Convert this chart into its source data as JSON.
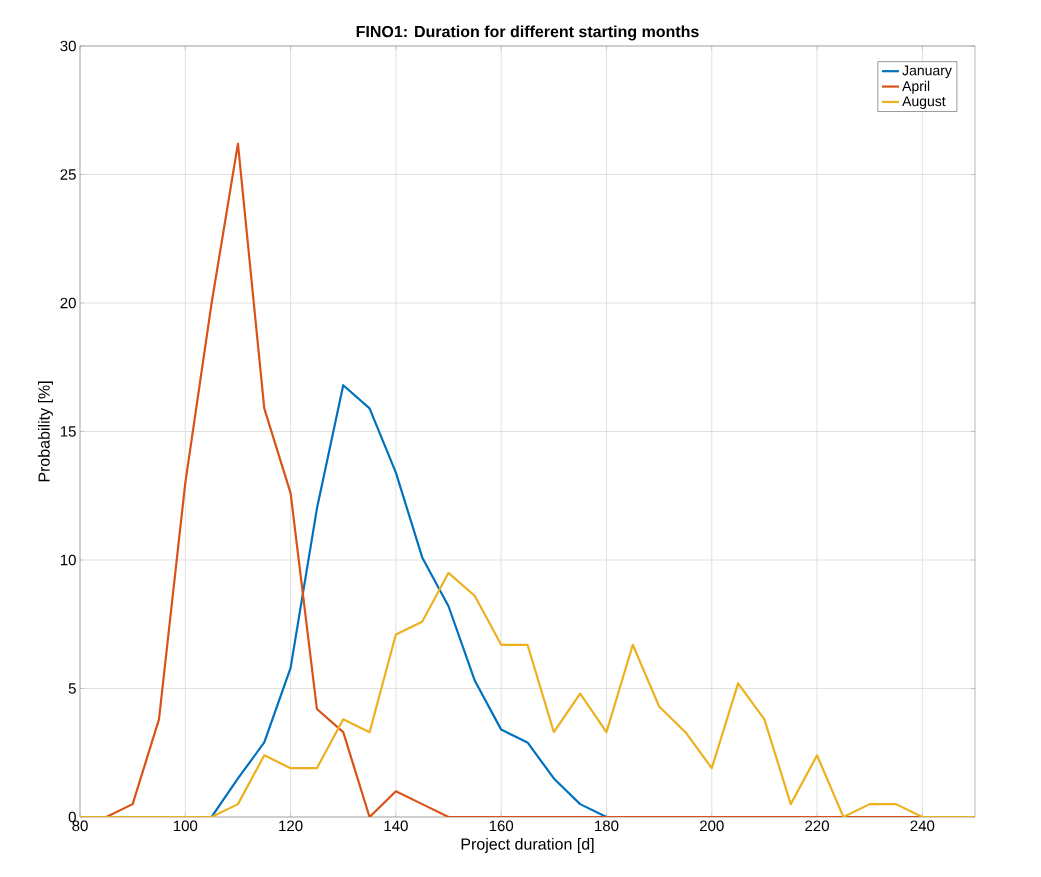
{
  "chart_data": {
    "type": "line",
    "title": "FINO1: Duration for different starting months",
    "xlabel": "Project duration [d]",
    "ylabel": "Probability [%]",
    "x": [
      80,
      85,
      90,
      95,
      100,
      105,
      110,
      115,
      120,
      125,
      130,
      135,
      140,
      145,
      150,
      155,
      160,
      165,
      170,
      175,
      180,
      185,
      190,
      195,
      200,
      205,
      210,
      215,
      220,
      225,
      230,
      235,
      240,
      245,
      250
    ],
    "series": [
      {
        "name": "January",
        "color": "#0072bd",
        "values": [
          null,
          null,
          null,
          null,
          null,
          0,
          1.5,
          2.9,
          5.8,
          12,
          16.8,
          15.9,
          13.4,
          10.1,
          8.2,
          5.3,
          3.4,
          2.9,
          1.5,
          0.5,
          0,
          null,
          null,
          null,
          null,
          null,
          null,
          null,
          null,
          null,
          null,
          null,
          null,
          null,
          null
        ]
      },
      {
        "name": "April",
        "color": "#d95319",
        "values": [
          0,
          0,
          0.5,
          3.8,
          13,
          20,
          26.2,
          15.9,
          12.6,
          4.2,
          3.3,
          0,
          1,
          0.5,
          0,
          0,
          0,
          0,
          0,
          0,
          0,
          0,
          0,
          0,
          0,
          0,
          0,
          0,
          0,
          0,
          0,
          0,
          0,
          0,
          0
        ]
      },
      {
        "name": "August",
        "color": "#edb120",
        "values": [
          0,
          0,
          0,
          0,
          0,
          0,
          0.5,
          2.4,
          1.9,
          1.9,
          3.8,
          3.3,
          7.1,
          7.6,
          9.5,
          8.6,
          6.7,
          6.7,
          3.3,
          4.8,
          3.3,
          6.7,
          4.3,
          3.3,
          1.9,
          5.2,
          3.8,
          0.5,
          2.4,
          0,
          0.5,
          0.5,
          0,
          0,
          0
        ]
      }
    ],
    "xlim": [
      80,
      250
    ],
    "ylim": [
      0,
      30
    ],
    "xticks": [
      80,
      100,
      120,
      140,
      160,
      180,
      200,
      220,
      240
    ],
    "yticks": [
      0,
      5,
      10,
      15,
      20,
      25,
      30
    ],
    "grid": true,
    "legend": "top right",
    "marker": "none",
    "line_style": "solid"
  }
}
